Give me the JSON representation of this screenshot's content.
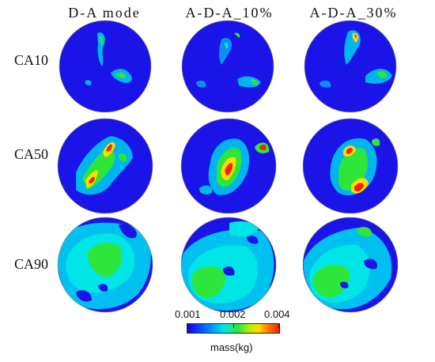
{
  "columns": [
    {
      "label": "D-A mode"
    },
    {
      "label": "A-D-A_10%"
    },
    {
      "label": "A-D-A_30%"
    }
  ],
  "rows": [
    {
      "label": "CA10"
    },
    {
      "label": "CA50"
    },
    {
      "label": "CA90"
    }
  ],
  "legend": {
    "title": "mass(kg)",
    "ticks": [
      "0.001",
      "0.002",
      "0.004"
    ],
    "colors": [
      "#1900e6",
      "#0a3cff",
      "#00a0ff",
      "#00e6e6",
      "#2ee53a",
      "#b8ef00",
      "#ffdc00",
      "#ff7800",
      "#ff1e00"
    ]
  },
  "field_background": "#1a14e8"
}
